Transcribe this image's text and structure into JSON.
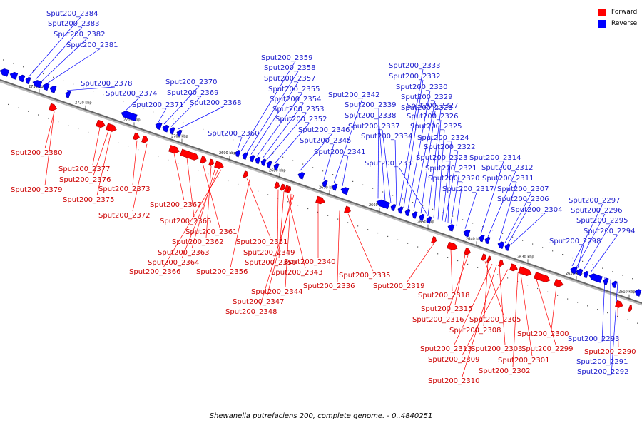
{
  "caption": "Shewanella putrefaciens 200, complete genome. - 0..4840251",
  "legend": [
    {
      "label": "Forward",
      "color": "#ff0000"
    },
    {
      "label": "Reverse",
      "color": "#0000ff"
    }
  ],
  "colors": {
    "forward": "#ff0000",
    "reverse": "#0000ff",
    "forward_text": "#cc0000",
    "reverse_text": "#1a1acc",
    "backbone": "#666666"
  },
  "kbp_ticks": [
    "2730 kbp",
    "2720 kbp",
    "2710 kbp",
    "2700 kbp",
    "2690 kbp",
    "2680 kbp",
    "2670 kbp",
    "2660 kbp",
    "2650 kbp",
    "2640 kbp",
    "2630 kbp",
    "2620 kbp",
    "2610 kbp"
  ],
  "genes": {
    "reverse": [
      "Sput200_2384",
      "Sput200_2383",
      "Sput200_2382",
      "Sput200_2381",
      "Sput200_2378",
      "Sput200_2374",
      "Sput200_2371",
      "Sput200_2370",
      "Sput200_2369",
      "Sput200_2368",
      "Sput200_2360",
      "Sput200_2359",
      "Sput200_2358",
      "Sput200_2357",
      "Sput200_2355",
      "Sput200_2354",
      "Sput200_2353",
      "Sput200_2352",
      "Sput200_2346",
      "Sput200_2345",
      "Sput200_2342",
      "Sput200_2341",
      "Sput200_2339",
      "Sput200_2338",
      "Sput200_2337",
      "Sput200_2334",
      "Sput200_2333",
      "Sput200_2332",
      "Sput200_2330",
      "Sput200_2329",
      "Sput200_2328",
      "Sput200_2331",
      "Sput200_2327",
      "Sput200_2326",
      "Sput200_2325",
      "Sput200_2324",
      "Sput200_2322",
      "Sput200_2323",
      "Sput200_2321",
      "Sput200_2320",
      "Sput200_2317",
      "Sput200_2314",
      "Sput200_2312",
      "Sput200_2311",
      "Sput200_2307",
      "Sput200_2306",
      "Sput200_2304",
      "Sput200_2297",
      "Sput200_2296",
      "Sput200_2295",
      "Sput200_2294",
      "Sput200_2298",
      "Sput200_2293",
      "Sput200_2291",
      "Sput200_2292"
    ],
    "forward": [
      "Sput200_2380",
      "Sput200_2377",
      "Sput200_2379",
      "Sput200_2376",
      "Sput200_2375",
      "Sput200_2373",
      "Sput200_2372",
      "Sput200_2367",
      "Sput200_2365",
      "Sput200_2361",
      "Sput200_2362",
      "Sput200_2363",
      "Sput200_2364",
      "Sput200_2366",
      "Sput200_2351",
      "Sput200_2349",
      "Sput200_2350",
      "Sput200_2356",
      "Sput200_2340",
      "Sput200_2343",
      "Sput200_2344",
      "Sput200_2347",
      "Sput200_2348",
      "Sput200_2336",
      "Sput200_2335",
      "Sput200_2319",
      "Sput200_2318",
      "Sput200_2315",
      "Sput200_2316",
      "Sput200_2305",
      "Sput200_2308",
      "Sput200_2300",
      "Sput200_2313",
      "Sput200_2303",
      "Sput200_2299",
      "Sput200_2309",
      "Sput200_2301",
      "Sput200_2302",
      "Sput200_2310",
      "Sput200_2290"
    ]
  }
}
